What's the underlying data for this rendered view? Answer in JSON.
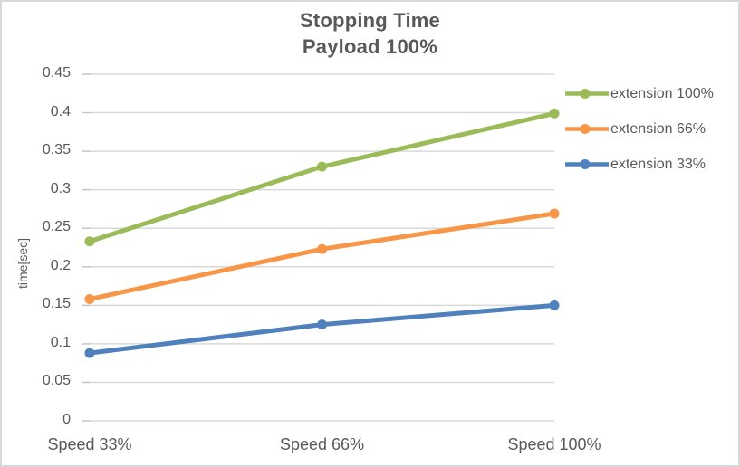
{
  "chart_data": {
    "type": "line",
    "title": "Stopping Time Payload 100%",
    "title_lines": [
      "Stopping Time",
      "Payload 100%"
    ],
    "categories": [
      "Speed 33%",
      "Speed 66%",
      "Speed 100%"
    ],
    "series": [
      {
        "name": "extension 100%",
        "color": "#9BBB59",
        "values": [
          0.233,
          0.33,
          0.399
        ]
      },
      {
        "name": "extension 66%",
        "color": "#F79646",
        "values": [
          0.158,
          0.223,
          0.269
        ]
      },
      {
        "name": "extension 33%",
        "color": "#4F81BD",
        "values": [
          0.088,
          0.125,
          0.15
        ]
      }
    ],
    "xlabel": "",
    "ylabel": "time[sec]",
    "ylim": [
      0,
      0.45
    ],
    "ytick_step": 0.05,
    "ytick_labels": [
      "0",
      "0.05",
      "0.1",
      "0.15",
      "0.2",
      "0.25",
      "0.3",
      "0.35",
      "0.4",
      "0.45"
    ],
    "grid": true,
    "legend_position": "right",
    "marker": "circle"
  },
  "style": {
    "text_color": "#595959",
    "gridline_color": "#D9D9D9",
    "tick_color": "#C6C6C6",
    "border_color": "#D8D8D8",
    "background": "#FFFFFF"
  }
}
